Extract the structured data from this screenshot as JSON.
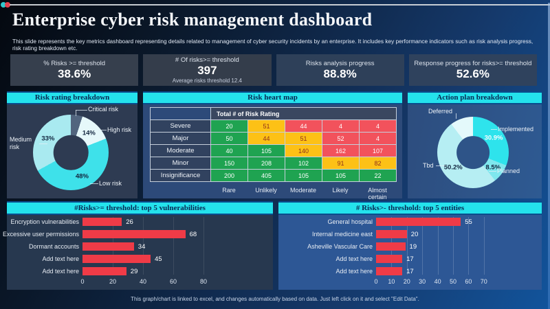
{
  "header": {
    "title": "Enterprise cyber risk management dashboard",
    "subtitle": "This slide represents the key metrics dashboard representing details related to management  of cyber security incidents by an enterprise. It includes key performance indicators such as risk analysis progress, risk rating breakdown etc."
  },
  "kpis": [
    {
      "label": "% Risks >= threshold",
      "value": "38.6%",
      "sub": ""
    },
    {
      "label": "# Of risks>= threshold",
      "value": "397",
      "sub": "Average risks threshold 12.4"
    },
    {
      "label": "Risks analysis progress",
      "value": "88.8%",
      "sub": ""
    },
    {
      "label": "Response progress for risks>= threshold",
      "value": "52.6%",
      "sub": ""
    }
  ],
  "sections": {
    "risk_rating": "Risk rating breakdown",
    "heat_map": "Risk heart map",
    "action_plan": "Action plan breakdown",
    "vulnerabilities": "#Risks>= threshold: top 5 vulnerabilities",
    "entities": "# Risks>- threshold: top 5 entities"
  },
  "footer": "This graph/chart is linked to excel, and changes automatically based on data. Just left click on it and select \"Edit Data\".",
  "colors": {
    "accent_cyan": "#24e2ec",
    "bar_red": "#ef3b47",
    "heat_green": "#1fa351",
    "heat_yellow": "#fdc116",
    "heat_red": "#f2525c"
  },
  "chart_data": [
    {
      "type": "pie",
      "donut": true,
      "title": "Risk rating breakdown",
      "target": "donut-risk-rating",
      "hole_color": "#2e3b52",
      "segments": [
        {
          "label": "Critical risk",
          "value": 5,
          "color": "#52657e",
          "pct_label": "",
          "pct_color": ""
        },
        {
          "label": "High risk",
          "value": 14,
          "color": "#e6f8fa",
          "pct_label": "14%",
          "pct_color": "#12263f"
        },
        {
          "label": "Low risk",
          "value": 48,
          "color": "#3ee1ea",
          "pct_label": "48%",
          "pct_color": "#12263f"
        },
        {
          "label": "Medium risk",
          "value": 33,
          "color": "#a9eaf0",
          "pct_label": "33%",
          "pct_color": "#12263f"
        }
      ]
    },
    {
      "type": "pie",
      "donut": true,
      "title": "Action plan breakdown",
      "target": "donut-action",
      "hole_color": "#2e5488",
      "segments": [
        {
          "label": "Implemented",
          "value": 30.9,
          "color": "#2ee3ec",
          "pct_label": "30.9%",
          "pct_color": "#f4fdff"
        },
        {
          "label": "Planned",
          "value": 8.5,
          "color": "#7fe7ee",
          "pct_label": "8.5%",
          "pct_color": "#12263f"
        },
        {
          "label": "Tbd",
          "value": 50.2,
          "color": "#b6eef3",
          "pct_label": "50.2%",
          "pct_color": "#12263f"
        },
        {
          "label": "Deferred",
          "value": 10.4,
          "color": "#e4f9fb",
          "pct_label": "",
          "pct_color": ""
        }
      ]
    },
    {
      "type": "heatmap",
      "title": "Risk heart map",
      "corner_header": "Total # of Risk Rating",
      "rows": [
        "Severe",
        "Major",
        "Moderate",
        "Minor",
        "Insignificance"
      ],
      "cols": [
        "Rare",
        "Unlikely",
        "Moderate",
        "Likely",
        "Almost certain"
      ],
      "values": [
        [
          20,
          51,
          44,
          4,
          4
        ],
        [
          50,
          44,
          51,
          52,
          4
        ],
        [
          40,
          105,
          140,
          162,
          107
        ],
        [
          150,
          208,
          102,
          91,
          82
        ],
        [
          200,
          405,
          105,
          105,
          22
        ]
      ],
      "cell_colors": [
        [
          "g",
          "y",
          "r",
          "r",
          "r"
        ],
        [
          "g",
          "y",
          "y",
          "r",
          "r"
        ],
        [
          "g",
          "g",
          "y",
          "r",
          "r"
        ],
        [
          "g",
          "g",
          "g",
          "y",
          "y"
        ],
        [
          "g",
          "g",
          "g",
          "g",
          "g"
        ]
      ]
    },
    {
      "type": "bar",
      "orientation": "horizontal",
      "title": "#Risks>= threshold: top 5 vulnerabilities",
      "target": "chart-vuln",
      "categories": [
        "Encryption vulnerabilities",
        "Excessive user permissions",
        "Dormant accounts",
        "Add text here",
        "Add text here"
      ],
      "values": [
        26,
        68,
        34,
        45,
        29
      ],
      "xlim": [
        0,
        80
      ],
      "ticks": [
        0,
        20,
        40,
        60,
        80
      ]
    },
    {
      "type": "bar",
      "orientation": "horizontal",
      "title": "# Risks>- threshold: top 5 entities",
      "target": "chart-entities",
      "categories": [
        "General hospital",
        "Internal medicine east",
        "Asheville Vascular Care",
        "Add text here",
        "Add text here"
      ],
      "values": [
        55,
        20,
        19,
        17,
        17
      ],
      "xlim": [
        0,
        70
      ],
      "ticks": [
        0,
        10,
        20,
        30,
        40,
        50,
        60,
        70
      ]
    }
  ]
}
